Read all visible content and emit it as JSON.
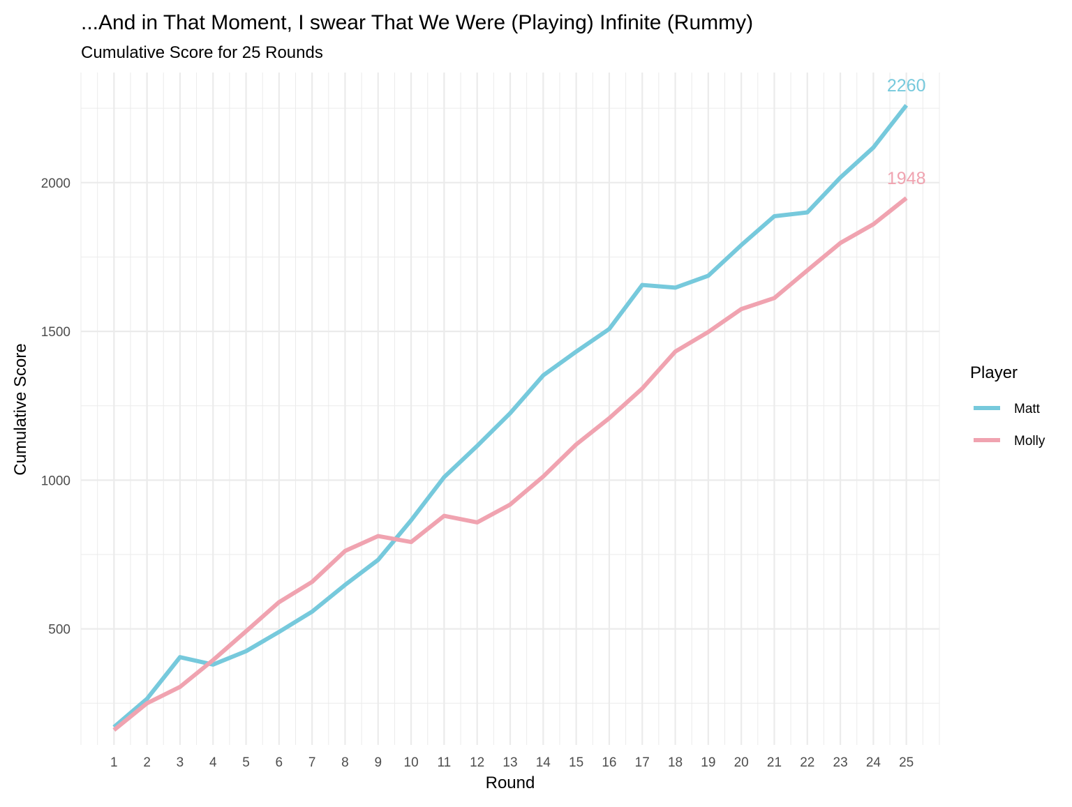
{
  "chart_data": {
    "type": "line",
    "title": "...And in That Moment, I swear That We Were (Playing) Infinite (Rummy)",
    "subtitle": "Cumulative Score for 25 Rounds",
    "xlabel": "Round",
    "ylabel": "Cumulative Score",
    "x": [
      1,
      2,
      3,
      4,
      5,
      6,
      7,
      8,
      9,
      10,
      11,
      12,
      13,
      14,
      15,
      16,
      17,
      18,
      19,
      20,
      21,
      22,
      23,
      24,
      25
    ],
    "x_ticks": [
      "1",
      "2",
      "3",
      "4",
      "5",
      "6",
      "7",
      "8",
      "9",
      "10",
      "11",
      "12",
      "13",
      "14",
      "15",
      "16",
      "17",
      "18",
      "19",
      "20",
      "21",
      "22",
      "23",
      "24",
      "25"
    ],
    "y_ticks": [
      "500",
      "1000",
      "1500",
      "2000"
    ],
    "xlim": [
      0.0,
      26.0
    ],
    "ylim": [
      110,
      2370
    ],
    "grid": true,
    "legend": {
      "title": "Player",
      "position": "right"
    },
    "series": [
      {
        "name": "Matt",
        "color": "#76c9dc",
        "values": [
          170,
          265,
          405,
          380,
          425,
          490,
          558,
          648,
          732,
          865,
          1010,
          1115,
          1225,
          1352,
          1432,
          1508,
          1656,
          1647,
          1687,
          1790,
          1887,
          1900,
          2017,
          2118,
          2260
        ],
        "end_label": "2260"
      },
      {
        "name": "Molly",
        "color": "#f0a3b0",
        "values": [
          160,
          250,
          305,
          395,
          492,
          590,
          658,
          762,
          812,
          792,
          880,
          858,
          918,
          1012,
          1120,
          1208,
          1308,
          1432,
          1498,
          1575,
          1612,
          1705,
          1797,
          1860,
          1948
        ],
        "end_label": "1948"
      }
    ]
  }
}
